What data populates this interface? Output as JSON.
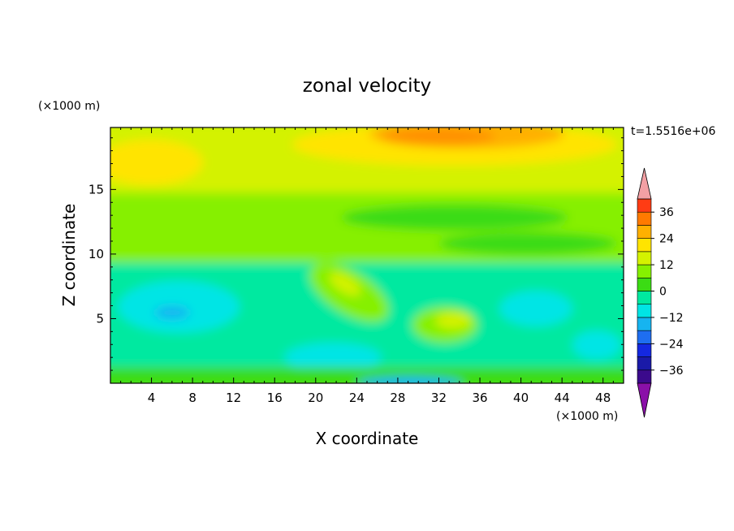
{
  "chart_data": {
    "type": "heatmap",
    "title": "zonal velocity",
    "xlabel": "X coordinate",
    "ylabel": "Z coordinate",
    "x_unit_label": "(×1000 m)",
    "y_unit_label": "(×1000 m)",
    "time_label": "t=1.5516e+06",
    "xlim": [
      0,
      50
    ],
    "ylim": [
      0,
      19.8
    ],
    "x_ticks": [
      4,
      8,
      12,
      16,
      20,
      24,
      28,
      32,
      36,
      40,
      44,
      48
    ],
    "y_ticks": [
      5,
      10,
      15
    ],
    "colorbar": {
      "levels": [
        -42,
        -36,
        -30,
        -24,
        -18,
        -12,
        -6,
        0,
        6,
        12,
        18,
        24,
        30,
        36,
        42
      ],
      "tick_labels": [
        -36,
        -24,
        -12,
        0,
        12,
        24,
        36
      ],
      "colors": [
        "#3b0a8c",
        "#1a1aa8",
        "#1428e0",
        "#1e6ef0",
        "#16b4f0",
        "#00e5e5",
        "#00e9a0",
        "#3bdc14",
        "#86f000",
        "#d4f200",
        "#ffe400",
        "#ffb000",
        "#ff7a00",
        "#ff3c14"
      ],
      "under_color": "#8a10a8",
      "over_color": "#f3a0a4",
      "extend": "both"
    },
    "grid": false,
    "legend": "right"
  }
}
